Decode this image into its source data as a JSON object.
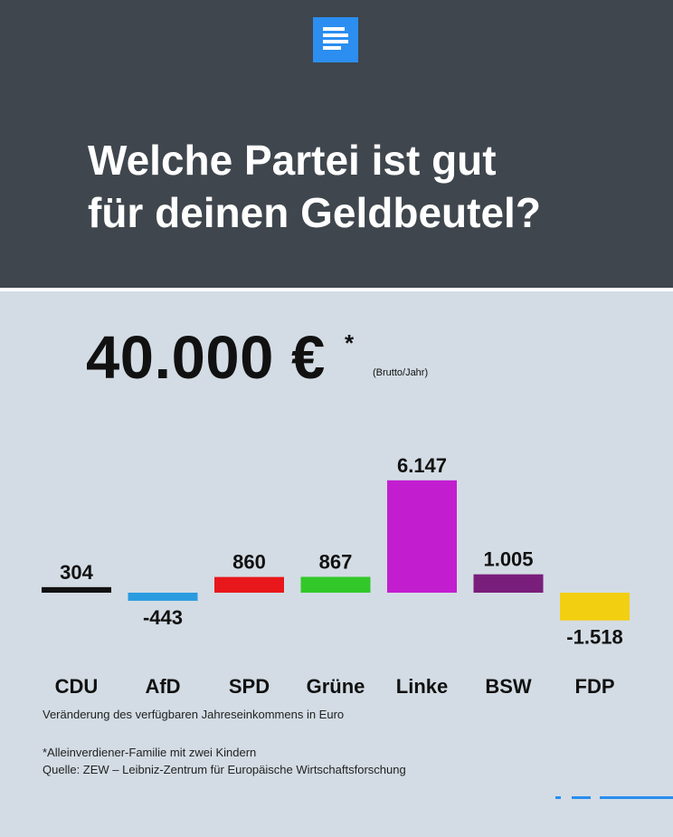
{
  "header": {
    "title_line1": "Welche Partei ist gut",
    "title_line2": "für deinen Geldbeutel?"
  },
  "income": {
    "amount": "40.000 €",
    "star": "*",
    "note": "(Brutto/Jahr)"
  },
  "chart_data": {
    "type": "bar",
    "categories": [
      "CDU",
      "AfD",
      "SPD",
      "Grüne",
      "Linke",
      "BSW",
      "FDP"
    ],
    "values": [
      304,
      -443,
      860,
      867,
      6147,
      1005,
      -1518
    ],
    "value_labels": [
      "304",
      "-443",
      "860",
      "867",
      "6.147",
      "1.005",
      "-1.518"
    ],
    "colors": [
      "#111111",
      "#2b9be0",
      "#e8171b",
      "#32c82a",
      "#c21ed0",
      "#7a1e7c",
      "#f3cf12"
    ],
    "xlabel": "Veränderung des verfügbaren Jahreseinkommens in Euro",
    "ylabel": "",
    "grid": false
  },
  "footnotes": {
    "family": "*Alleinverdiener-Familie mit zwei Kindern",
    "source": "Quelle: ZEW – Leibniz-Zentrum für Europäische Wirtschaftsforschung"
  },
  "brand": {
    "logo_icon": "deutschlandfunk-logo-icon",
    "accent": "#2b8ef0",
    "header_bg": "#3f464d",
    "page_bg": "#d3dce4"
  }
}
